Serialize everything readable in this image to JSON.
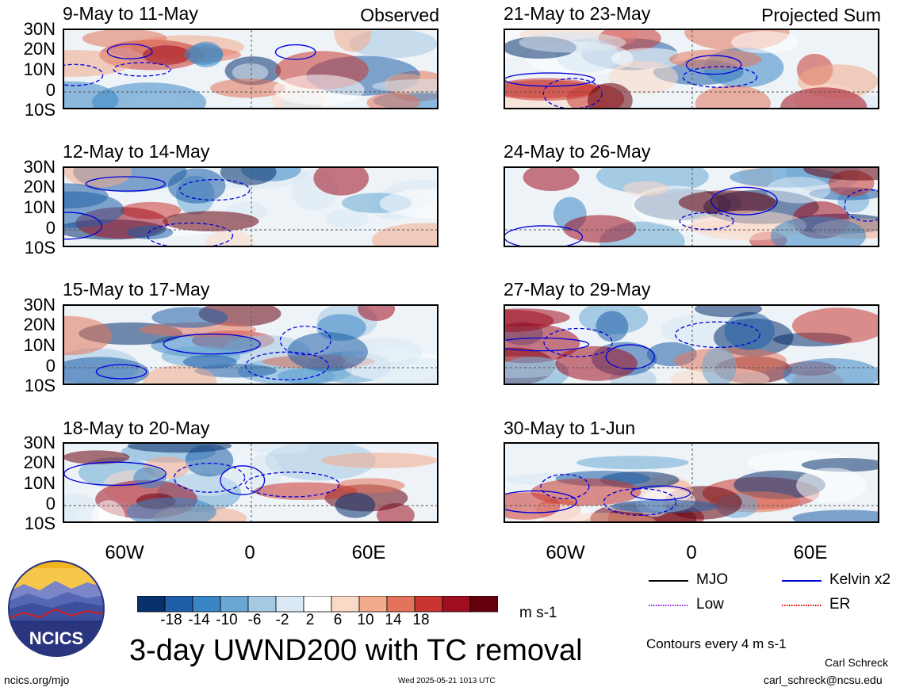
{
  "panels": [
    {
      "title": "9-May to 11-May",
      "tag": "Observed",
      "col": 0,
      "row": 0
    },
    {
      "title": "12-May to 14-May",
      "tag": "",
      "col": 0,
      "row": 1
    },
    {
      "title": "15-May to 17-May",
      "tag": "",
      "col": 0,
      "row": 2
    },
    {
      "title": "18-May to 20-May",
      "tag": "",
      "col": 0,
      "row": 3
    },
    {
      "title": "21-May to 23-May",
      "tag": "Projected Sum",
      "col": 1,
      "row": 0
    },
    {
      "title": "24-May to 26-May",
      "tag": "",
      "col": 1,
      "row": 1
    },
    {
      "title": "27-May to 29-May",
      "tag": "",
      "col": 1,
      "row": 2
    },
    {
      "title": "30-May to 1-Jun",
      "tag": "",
      "col": 1,
      "row": 3
    }
  ],
  "lat_labels": [
    "30N",
    "20N",
    "10N",
    "0",
    "10S"
  ],
  "lon_labels": [
    "60W",
    "0",
    "60E"
  ],
  "colorbar": {
    "ticks": [
      "-18",
      "-14",
      "-10",
      "-6",
      "-2",
      "2",
      "6",
      "10",
      "14",
      "18"
    ],
    "unit": "m s-1",
    "colors": [
      "#08306b",
      "#1f5ea8",
      "#3a86c4",
      "#6aa7d3",
      "#a6c9e3",
      "#d9e8f3",
      "#ffffff",
      "#fbd9c7",
      "#f3aa8a",
      "#e3735a",
      "#c9362f",
      "#a00d1f",
      "#67000d"
    ]
  },
  "legend": {
    "items": [
      {
        "label": "MJO",
        "color": "#000000",
        "style": "solid"
      },
      {
        "label": "Kelvin x2",
        "color": "#0000dd",
        "style": "solid"
      },
      {
        "label": "Low",
        "color": "#8a2be2",
        "style": "dotted"
      },
      {
        "label": "ER",
        "color": "#dd0000",
        "style": "dotted"
      }
    ],
    "contour_note": "Contours every 4 m s-1"
  },
  "main_title": "3-day UWND200 with TC removal",
  "logo_text": "NCICS",
  "footer": {
    "url": "ncics.org/mjo",
    "timestamp": "Wed 2025-05-21 1013 UTC",
    "author": "Carl Schreck",
    "email": "carl_schreck@ncsu.edu"
  },
  "chart_data": {
    "type": "heatmap",
    "variable": "UWND200",
    "units": "m s-1",
    "lat_range": [
      "10S",
      "30N"
    ],
    "lon_ticks": [
      "60W",
      "0",
      "60E"
    ],
    "color_levels": [
      -18,
      -14,
      -10,
      -6,
      -2,
      2,
      6,
      10,
      14,
      18
    ],
    "contour_interval": 4,
    "panel_count": 8,
    "groups": [
      "Observed",
      "Projected Sum"
    ]
  }
}
